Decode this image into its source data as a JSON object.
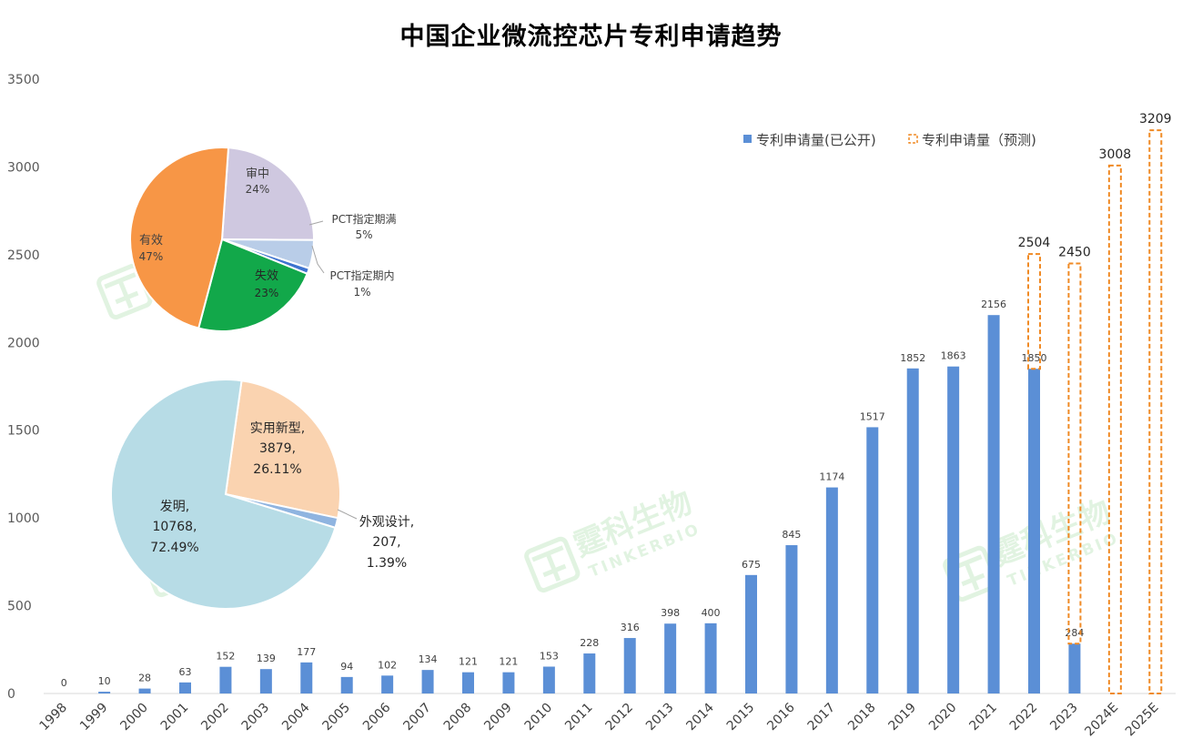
{
  "chart_data": [
    {
      "type": "bar",
      "title": "中国企业微流控芯片专利申请趋势",
      "xlabel": "",
      "ylabel": "",
      "ylim": [
        0,
        3500
      ],
      "yticks": [
        "0",
        "500",
        "1000",
        "1500",
        "2000",
        "2500",
        "3000",
        "3500"
      ],
      "legend_position": "top-right",
      "categories": [
        "1998",
        "1999",
        "2000",
        "2001",
        "2002",
        "2003",
        "2004",
        "2005",
        "2006",
        "2007",
        "2008",
        "2009",
        "2010",
        "2011",
        "2012",
        "2013",
        "2014",
        "2015",
        "2016",
        "2017",
        "2018",
        "2019",
        "2020",
        "2021",
        "2022",
        "2023",
        "2024E",
        "2025E"
      ],
      "series": [
        {
          "name": "专利申请量(已公开)",
          "color": "#5B8FD6",
          "style": "solid",
          "values": [
            0,
            10,
            28,
            63,
            152,
            139,
            177,
            94,
            102,
            134,
            121,
            121,
            153,
            228,
            316,
            398,
            400,
            675,
            845,
            1174,
            1517,
            1852,
            1863,
            2156,
            1850,
            284,
            null,
            null
          ]
        },
        {
          "name": "专利申请量（预测)",
          "color": "#F08A24",
          "style": "dashed-outline",
          "values": [
            null,
            null,
            null,
            null,
            null,
            null,
            null,
            null,
            null,
            null,
            null,
            null,
            null,
            null,
            null,
            null,
            null,
            null,
            null,
            null,
            null,
            null,
            null,
            null,
            2504,
            2450,
            3008,
            3209
          ]
        }
      ]
    },
    {
      "type": "pie",
      "slices": [
        {
          "label": "审中",
          "value": 24,
          "display": "24%",
          "color": "#CFC8E0"
        },
        {
          "label": "PCT指定期满",
          "value": 5,
          "display": "5%",
          "color": "#B9CDE8"
        },
        {
          "label": "PCT指定期内",
          "value": 1,
          "display": "1%",
          "color": "#3E73CF"
        },
        {
          "label": "失效",
          "value": 23,
          "display": "23%",
          "color": "#12A84A"
        },
        {
          "label": "有效",
          "value": 47,
          "display": "47%",
          "color": "#F79646"
        }
      ]
    },
    {
      "type": "pie",
      "slices": [
        {
          "label": "实用新型,",
          "count": "3879,",
          "value": 26.11,
          "display": "26.11%",
          "color": "#FAD3B0"
        },
        {
          "label": "外观设计,",
          "count": "207,",
          "value": 1.39,
          "display": "1.39%",
          "color": "#8FB4E0"
        },
        {
          "label": "发明,",
          "count": "10768,",
          "value": 72.49,
          "display": "72.49%",
          "color": "#B7DCE6"
        }
      ]
    }
  ],
  "watermark": {
    "text_cn": "霆科生物",
    "text_en": "TINKERBIO",
    "color": "#5DBE5F"
  }
}
